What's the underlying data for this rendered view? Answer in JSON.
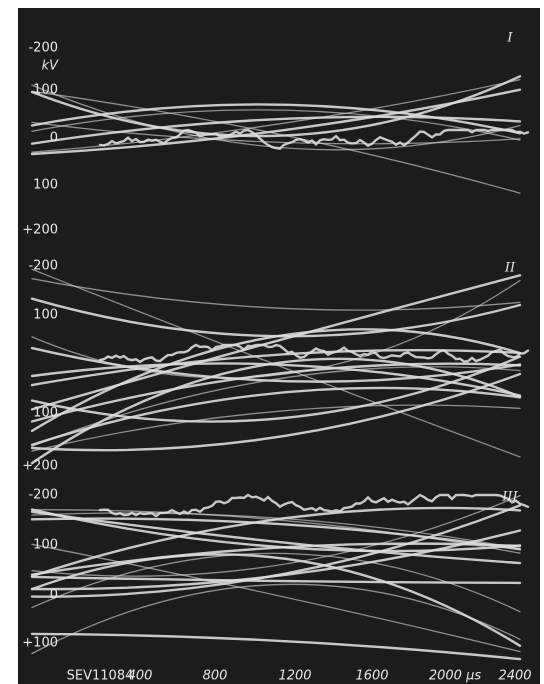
{
  "panels": [
    {
      "label": "I",
      "y_labels": [
        "-200",
        "kV",
        "100",
        "0",
        "100",
        "+200"
      ]
    },
    {
      "label": "II",
      "y_labels": [
        "-200",
        "100",
        "100",
        "+200"
      ]
    },
    {
      "label": "III",
      "y_labels": [
        "-200",
        "100",
        "0",
        "+100"
      ]
    }
  ],
  "x_axis": {
    "figure_id": "SEV11084",
    "labels": [
      "400",
      "800",
      "1200",
      "1600",
      "2000 µs",
      "2400"
    ]
  }
}
